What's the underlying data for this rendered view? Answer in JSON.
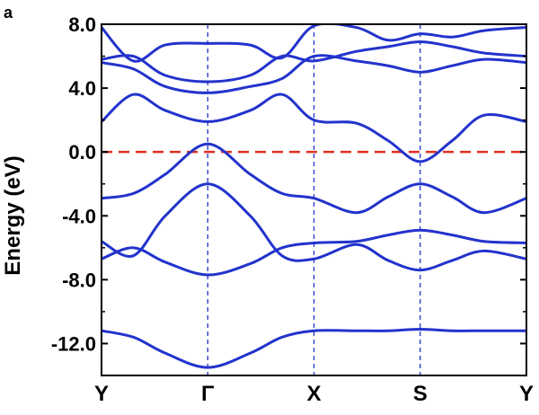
{
  "panel_label": "a",
  "chart_data": {
    "type": "line",
    "ylabel": "Energy (eV)",
    "ylim": [
      -14.0,
      8.0
    ],
    "yticks": [
      8.0,
      4.0,
      0.0,
      -4.0,
      -8.0,
      -12.0
    ],
    "ytick_labels": [
      "8.0",
      "4.0",
      "0.0",
      "-4.0",
      "-8.0",
      "-12.0"
    ],
    "k_points": [
      {
        "label": "Y",
        "x": 0.0
      },
      {
        "label": "Γ",
        "x": 1.0
      },
      {
        "label": "X",
        "x": 2.0
      },
      {
        "label": "S",
        "x": 3.0
      },
      {
        "label": "Y",
        "x": 4.0
      }
    ],
    "fermi_level": 0.0,
    "colors": {
      "bands": "#2233cc",
      "fermi": "#e03020",
      "kline": "#2233cc",
      "axis": "#000000"
    },
    "bands": [
      {
        "x": [
          0,
          0.3,
          0.6,
          1.0,
          1.4,
          1.7,
          2.0,
          2.4,
          2.7,
          3.0,
          3.3,
          3.6,
          4.0
        ],
        "y": [
          -11.2,
          -11.6,
          -12.6,
          -13.5,
          -12.6,
          -11.6,
          -11.2,
          -11.2,
          -11.2,
          -11.1,
          -11.2,
          -11.2,
          -11.2
        ]
      },
      {
        "x": [
          0,
          0.3,
          0.6,
          1.0,
          1.4,
          1.7,
          2.0,
          2.4,
          2.7,
          3.0,
          3.3,
          3.6,
          4.0
        ],
        "y": [
          -6.7,
          -6.0,
          -6.9,
          -7.7,
          -7.0,
          -6.0,
          -5.7,
          -5.6,
          -5.2,
          -4.9,
          -5.2,
          -5.6,
          -5.7
        ]
      },
      {
        "x": [
          0,
          0.3,
          0.6,
          1.0,
          1.4,
          1.7,
          2.0,
          2.4,
          2.7,
          3.0,
          3.3,
          3.6,
          4.0
        ],
        "y": [
          -5.6,
          -6.5,
          -4.0,
          -2.0,
          -4.0,
          -6.5,
          -6.7,
          -5.8,
          -6.8,
          -7.4,
          -6.8,
          -6.2,
          -6.7
        ]
      },
      {
        "x": [
          0,
          0.3,
          0.6,
          1.0,
          1.4,
          1.7,
          2.0,
          2.4,
          2.7,
          3.0,
          3.3,
          3.6,
          4.0
        ],
        "y": [
          -2.9,
          -2.6,
          -1.4,
          0.5,
          -1.4,
          -2.6,
          -2.9,
          -3.8,
          -2.8,
          -2.0,
          -2.8,
          -3.8,
          -2.9
        ]
      },
      {
        "x": [
          0,
          0.3,
          0.6,
          1.0,
          1.4,
          1.7,
          2.0,
          2.4,
          2.7,
          3.0,
          3.3,
          3.6,
          4.0
        ],
        "y": [
          1.9,
          3.6,
          2.6,
          1.9,
          2.6,
          3.6,
          2.0,
          1.8,
          0.7,
          -0.6,
          0.7,
          2.3,
          1.9
        ]
      },
      {
        "x": [
          0,
          0.3,
          0.6,
          1.0,
          1.4,
          1.7,
          2.0,
          2.4,
          2.7,
          3.0,
          3.3,
          3.6,
          4.0
        ],
        "y": [
          5.6,
          5.2,
          4.1,
          3.7,
          4.1,
          4.6,
          6.0,
          5.7,
          5.4,
          5.0,
          5.4,
          5.8,
          5.6
        ]
      },
      {
        "x": [
          0,
          0.3,
          0.6,
          1.0,
          1.4,
          1.7,
          2.0,
          2.4,
          2.7,
          3.0,
          3.3,
          3.6,
          4.0
        ],
        "y": [
          5.8,
          6.0,
          4.8,
          4.4,
          4.8,
          6.0,
          5.7,
          6.3,
          6.6,
          6.9,
          6.6,
          6.2,
          6.0
        ]
      },
      {
        "x": [
          0,
          0.3,
          0.6,
          1.0,
          1.4,
          1.7,
          2.0,
          2.4,
          2.7,
          3.0,
          3.3,
          3.6,
          4.0
        ],
        "y": [
          7.8,
          5.7,
          6.7,
          6.8,
          6.7,
          5.9,
          7.9,
          7.8,
          7.0,
          7.4,
          7.2,
          7.6,
          7.8
        ]
      }
    ]
  }
}
